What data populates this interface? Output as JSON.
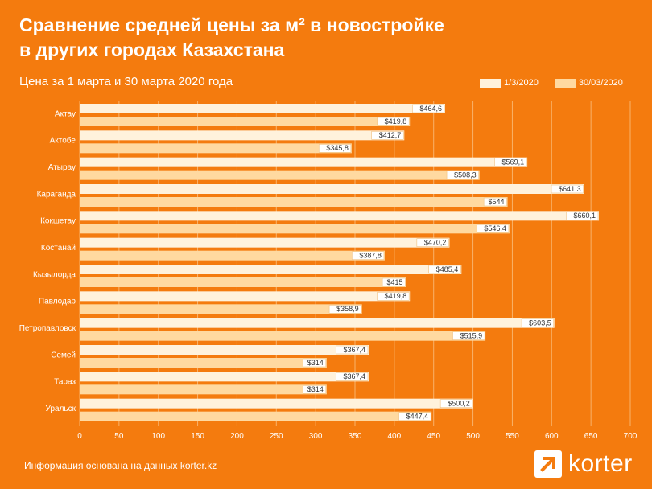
{
  "title_line1": "Сравнение средней цены за м² в новостройке",
  "title_line2": "в других городах Казахстана",
  "subtitle": "Цена за 1 марта  и 30 марта 2020 года",
  "footer": "Информация основана на данных korter.kz",
  "logo_text": "korter",
  "colors": {
    "background": "#f47b0e",
    "series1": "#fff2dc",
    "series2": "#ffd9a0",
    "grid": "#f9b36a",
    "label_text": "#333333"
  },
  "chart_data": {
    "type": "bar",
    "orientation": "horizontal",
    "categories": [
      "Актау",
      "Актобе",
      "Атырау",
      "Караганда",
      "Кокшетау",
      "Костанай",
      "Кызылорда",
      "Павлодар",
      "Петропавловск",
      "Семей",
      "Тараз",
      "Уральск"
    ],
    "series": [
      {
        "name": "1/3/2020",
        "values": [
          464.6,
          412.7,
          569.1,
          641.3,
          660.1,
          470.2,
          485.4,
          419.8,
          603.5,
          367.4,
          367.4,
          500.2
        ],
        "labels": [
          "$464,6",
          "$412,7",
          "$569,1",
          "$641,3",
          "$660,1",
          "$470,2",
          "$485,4",
          "$419,8",
          "$603,5",
          "$367,4",
          "$367,4",
          "$500,2"
        ]
      },
      {
        "name": "30/03/2020",
        "values": [
          419.8,
          345.8,
          508.3,
          544,
          546.4,
          387.8,
          415,
          358.9,
          515.9,
          314,
          314,
          447.4
        ],
        "labels": [
          "$419,8",
          "$345,8",
          "$508,3",
          "$544",
          "$546,4",
          "$387,8",
          "$415",
          "$358,9",
          "$515,9",
          "$314",
          "$314",
          "$447,4"
        ]
      }
    ],
    "x_ticks": [
      "0",
      "50",
      "100",
      "150",
      "200",
      "250",
      "300",
      "350",
      "400",
      "450",
      "500",
      "550",
      "600",
      "650",
      "700"
    ],
    "xlim": [
      0,
      700
    ],
    "grid": true,
    "legend_position": "top-right"
  }
}
